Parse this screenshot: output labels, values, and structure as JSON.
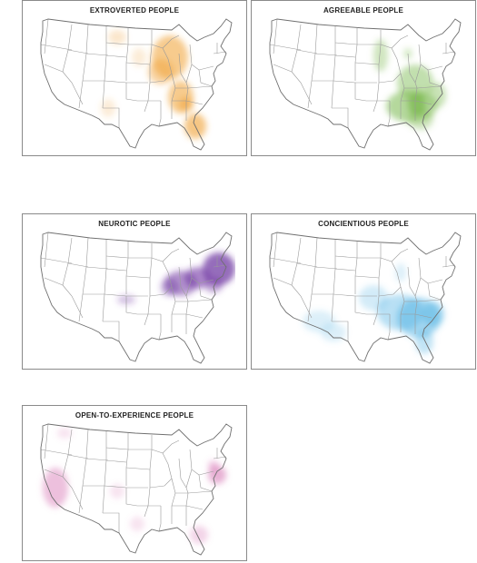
{
  "panels": [
    {
      "id": "extroverted",
      "title": "EXTROVERTED PEOPLE",
      "color": "#f0a030",
      "blobs": [
        {
          "cx": 148,
          "cy": 44,
          "rx": 20,
          "ry": 24,
          "o": 0.55
        },
        {
          "cx": 138,
          "cy": 60,
          "rx": 14,
          "ry": 14,
          "o": 0.45
        },
        {
          "cx": 160,
          "cy": 88,
          "rx": 14,
          "ry": 18,
          "o": 0.55
        },
        {
          "cx": 176,
          "cy": 120,
          "rx": 12,
          "ry": 14,
          "o": 0.6
        },
        {
          "cx": 166,
          "cy": 96,
          "rx": 8,
          "ry": 8,
          "o": 0.5
        },
        {
          "cx": 90,
          "cy": 22,
          "rx": 10,
          "ry": 8,
          "o": 0.25
        },
        {
          "cx": 80,
          "cy": 100,
          "rx": 8,
          "ry": 10,
          "o": 0.2
        },
        {
          "cx": 114,
          "cy": 44,
          "rx": 8,
          "ry": 10,
          "o": 0.2
        }
      ]
    },
    {
      "id": "agreeable",
      "title": "AGREEABLE PEOPLE",
      "color": "#78b84a",
      "blobs": [
        {
          "cx": 166,
          "cy": 72,
          "rx": 20,
          "ry": 20,
          "o": 0.45
        },
        {
          "cx": 162,
          "cy": 98,
          "rx": 28,
          "ry": 18,
          "o": 0.55
        },
        {
          "cx": 168,
          "cy": 96,
          "rx": 10,
          "ry": 12,
          "o": 0.7
        },
        {
          "cx": 190,
          "cy": 86,
          "rx": 10,
          "ry": 14,
          "o": 0.4
        },
        {
          "cx": 128,
          "cy": 42,
          "rx": 8,
          "ry": 18,
          "o": 0.35
        },
        {
          "cx": 172,
          "cy": 112,
          "rx": 14,
          "ry": 12,
          "o": 0.35
        },
        {
          "cx": 158,
          "cy": 40,
          "rx": 5,
          "ry": 6,
          "o": 0.3
        }
      ]
    },
    {
      "id": "neurotic",
      "title": "NEUROTIC PEOPLE",
      "color": "#6a2c9e",
      "blobs": [
        {
          "cx": 202,
          "cy": 42,
          "rx": 18,
          "ry": 18,
          "o": 0.7
        },
        {
          "cx": 178,
          "cy": 52,
          "rx": 14,
          "ry": 12,
          "o": 0.55
        },
        {
          "cx": 160,
          "cy": 58,
          "rx": 18,
          "ry": 14,
          "o": 0.5
        },
        {
          "cx": 148,
          "cy": 62,
          "rx": 10,
          "ry": 10,
          "o": 0.4
        },
        {
          "cx": 100,
          "cy": 76,
          "rx": 10,
          "ry": 5,
          "o": 0.3
        },
        {
          "cx": 196,
          "cy": 60,
          "rx": 10,
          "ry": 8,
          "o": 0.45
        }
      ]
    },
    {
      "id": "concientious",
      "title": "CONCIENTIOUS PEOPLE",
      "color": "#4db1e3",
      "blobs": [
        {
          "cx": 170,
          "cy": 96,
          "rx": 24,
          "ry": 22,
          "o": 0.5
        },
        {
          "cx": 150,
          "cy": 90,
          "rx": 26,
          "ry": 20,
          "o": 0.4
        },
        {
          "cx": 186,
          "cy": 92,
          "rx": 12,
          "ry": 14,
          "o": 0.45
        },
        {
          "cx": 176,
          "cy": 122,
          "rx": 10,
          "ry": 14,
          "o": 0.35
        },
        {
          "cx": 120,
          "cy": 74,
          "rx": 16,
          "ry": 14,
          "o": 0.25
        },
        {
          "cx": 60,
          "cy": 100,
          "rx": 18,
          "ry": 12,
          "o": 0.2
        },
        {
          "cx": 76,
          "cy": 112,
          "rx": 14,
          "ry": 10,
          "o": 0.2
        },
        {
          "cx": 150,
          "cy": 46,
          "rx": 6,
          "ry": 10,
          "o": 0.2
        }
      ]
    },
    {
      "id": "open",
      "title": "OPEN-TO-EXPERIENCE PEOPLE",
      "color": "#d673b3",
      "blobs": [
        {
          "cx": 22,
          "cy": 72,
          "rx": 14,
          "ry": 22,
          "o": 0.45
        },
        {
          "cx": 200,
          "cy": 58,
          "rx": 10,
          "ry": 10,
          "o": 0.55
        },
        {
          "cx": 196,
          "cy": 48,
          "rx": 6,
          "ry": 6,
          "o": 0.4
        },
        {
          "cx": 32,
          "cy": 12,
          "rx": 8,
          "ry": 6,
          "o": 0.2
        },
        {
          "cx": 180,
          "cy": 124,
          "rx": 10,
          "ry": 10,
          "o": 0.3
        },
        {
          "cx": 90,
          "cy": 76,
          "rx": 8,
          "ry": 8,
          "o": 0.2
        },
        {
          "cx": 112,
          "cy": 112,
          "rx": 8,
          "ry": 8,
          "o": 0.2
        }
      ]
    }
  ]
}
